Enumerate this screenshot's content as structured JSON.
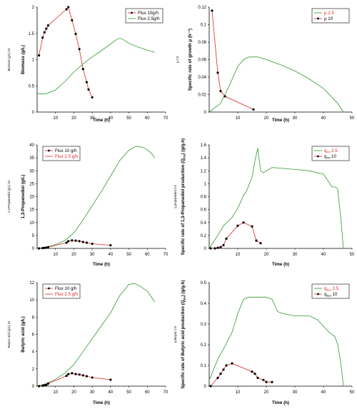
{
  "colors": {
    "red": "#e0241b",
    "green": "#2f9a2f",
    "black": "#000000"
  },
  "chart_data": [
    {
      "type": "line",
      "side_label": "Biomass (g/L) 10",
      "xlabel": "Time (h)",
      "ylabel": "Biomass (g/L)",
      "xlim": [
        0,
        70
      ],
      "ylim": [
        0,
        2
      ],
      "xticks": [
        "10",
        "20",
        "30",
        "40",
        "50",
        "60",
        "70"
      ],
      "yticks": [
        "0",
        "0.5",
        "1",
        "1.5",
        "2"
      ],
      "legend": {
        "position": "top-right",
        "entries": [
          {
            "label": "Flux 10g/h",
            "label_color": "#000000",
            "line_color": "#e0241b",
            "marker": true
          },
          {
            "label": "Flux 2.5g/h",
            "label_color": "#000000",
            "line_color": "#2f9a2f",
            "marker": false
          }
        ]
      },
      "series": [
        {
          "name": "Flux 10g/h",
          "color": "#e0241b",
          "marker": true,
          "x": [
            1,
            3,
            4,
            5,
            6,
            16,
            17,
            19,
            21,
            23,
            25,
            27,
            28,
            30
          ],
          "y": [
            1.08,
            1.42,
            1.52,
            1.59,
            1.65,
            1.96,
            2.0,
            1.75,
            1.49,
            1.2,
            0.82,
            0.57,
            0.43,
            0.28
          ]
        },
        {
          "name": "Flux 2.5g/h",
          "color": "#2f9a2f",
          "marker": false,
          "x": [
            0,
            5,
            10,
            15,
            20,
            25,
            30,
            35,
            40,
            44,
            46,
            50,
            55,
            60,
            64
          ],
          "y": [
            0.35,
            0.35,
            0.42,
            0.58,
            0.76,
            0.92,
            1.05,
            1.17,
            1.3,
            1.4,
            1.4,
            1.31,
            1.24,
            1.18,
            1.14
          ]
        }
      ]
    },
    {
      "type": "line",
      "side_label": "μ 2.5",
      "xlabel": "Time (h)",
      "ylabel": "Specific rate of growth μ (h⁻¹)",
      "xlim": [
        0,
        50
      ],
      "ylim": [
        0,
        0.12
      ],
      "xticks": [
        "10",
        "20",
        "30",
        "40",
        "50"
      ],
      "yticks": [
        "0",
        "0.02",
        "0.04",
        "0.06",
        "0.08",
        "0.1",
        "0.12"
      ],
      "legend": {
        "position": "top-right",
        "entries": [
          {
            "label": "μ 2.5",
            "label_color": "#e0241b",
            "line_color": "#2f9a2f",
            "marker": false
          },
          {
            "label": "μ 10",
            "label_color": "#000000",
            "line_color": "#e0241b",
            "marker": true
          }
        ]
      },
      "series": [
        {
          "name": "μ 10",
          "color": "#e0241b",
          "marker": true,
          "x": [
            1,
            3,
            4,
            5.5,
            15.5
          ],
          "y": [
            0.116,
            0.045,
            0.024,
            0.018,
            0.003
          ]
        },
        {
          "name": "μ 2.5",
          "color": "#2f9a2f",
          "marker": false,
          "x": [
            0,
            4,
            7,
            10,
            12,
            14,
            17,
            20,
            25,
            30,
            35,
            40,
            45,
            47
          ],
          "y": [
            0.0,
            0.01,
            0.03,
            0.052,
            0.06,
            0.063,
            0.063,
            0.06,
            0.054,
            0.047,
            0.038,
            0.027,
            0.01,
            0.0
          ]
        }
      ]
    },
    {
      "type": "line",
      "side_label": "1,3-Propanediol (g/L) 10",
      "xlabel": "Time (h)",
      "ylabel": "1,3-Propanediol (g/L)",
      "xlim": [
        0,
        70
      ],
      "ylim": [
        0,
        40
      ],
      "xticks": [
        "10",
        "20",
        "30",
        "40",
        "50",
        "60",
        "70"
      ],
      "yticks": [
        "0",
        "5",
        "10",
        "15",
        "20",
        "25",
        "30",
        "35",
        "40"
      ],
      "legend": {
        "position": "top-left",
        "entries": [
          {
            "label": "Flux 10 g/h",
            "label_color": "#000000",
            "line_color": "#e0241b",
            "marker": true
          },
          {
            "label": "Flux 2.5 g/h",
            "label_color": "#e0241b",
            "line_color": "#e0241b",
            "marker": false
          }
        ]
      },
      "series": [
        {
          "name": "Flux 10 g/h",
          "color": "#e0241b",
          "marker": true,
          "x": [
            1,
            3,
            4,
            5,
            6,
            16,
            17,
            19,
            21,
            23,
            25,
            27,
            30,
            40
          ],
          "y": [
            0,
            0.1,
            0.2,
            0.3,
            0.5,
            2.2,
            2.8,
            3.1,
            3.0,
            2.8,
            2.5,
            2.2,
            1.8,
            1.2
          ]
        },
        {
          "name": "Flux 2.5 g/h",
          "color": "#2f9a2f",
          "marker": false,
          "x": [
            0,
            5,
            10,
            15,
            20,
            25,
            30,
            35,
            40,
            45,
            50,
            54,
            58,
            62,
            64
          ],
          "y": [
            0,
            0.5,
            1.5,
            3.0,
            6.0,
            11.0,
            16.5,
            22.0,
            28.0,
            34.0,
            38.0,
            39.5,
            39.0,
            37.0,
            35.0
          ]
        }
      ]
    },
    {
      "type": "line",
      "side_label": "q propanediol 2.5",
      "xlabel": "Time (h)",
      "ylabel": "Specific rate of 1,3-Propanediol production (Q",
      "ylabel_sub": "PD",
      "ylabel_tail": ") (g/g.h)",
      "xlim": [
        0,
        50
      ],
      "ylim": [
        0,
        1.6
      ],
      "xticks": [
        "10",
        "20",
        "30",
        "40",
        "50"
      ],
      "yticks": [
        "0",
        "0.2",
        "0.4",
        "0.6",
        "0.8",
        "1",
        "1.2",
        "1.4",
        "1.6"
      ],
      "legend": {
        "position": "top-right",
        "entries": [
          {
            "label": "q",
            "sub": "PD",
            "tail": "2.5",
            "label_color": "#e0241b",
            "line_color": "#2f9a2f",
            "marker": false
          },
          {
            "label": "q",
            "sub": "PD",
            "tail": "10",
            "label_color": "#000000",
            "line_color": "#e0241b",
            "marker": true
          }
        ]
      },
      "series": [
        {
          "name": "q PD 10",
          "color": "#e0241b",
          "marker": true,
          "x": [
            0.5,
            2,
            3,
            4,
            5,
            6,
            10,
            12,
            15,
            16.5,
            18
          ],
          "y": [
            0.0,
            0.0,
            0.01,
            0.02,
            0.05,
            0.15,
            0.35,
            0.4,
            0.34,
            0.12,
            0.08
          ]
        },
        {
          "name": "q PD 2.5",
          "color": "#2f9a2f",
          "marker": false,
          "x": [
            0,
            3,
            5,
            8,
            10,
            12,
            13,
            15,
            16,
            17,
            18,
            19,
            20,
            22,
            25,
            30,
            35,
            40,
            43,
            44,
            45,
            46,
            47
          ],
          "y": [
            0,
            0.2,
            0.35,
            0.48,
            0.62,
            0.82,
            0.88,
            1.1,
            1.35,
            1.55,
            1.2,
            1.17,
            1.2,
            1.25,
            1.24,
            1.22,
            1.2,
            1.15,
            0.95,
            0.95,
            0.92,
            0.5,
            0.0
          ]
        }
      ]
    },
    {
      "type": "line",
      "side_label": "Butyric acid (g/L) 10",
      "xlabel": "Time (h)",
      "ylabel": "Butyric acid (g/L)",
      "xlim": [
        0,
        70
      ],
      "ylim": [
        0,
        12
      ],
      "xticks": [
        "10",
        "20",
        "30",
        "40",
        "50",
        "60",
        "70"
      ],
      "yticks": [
        "0",
        "2",
        "4",
        "6",
        "8",
        "10",
        "12"
      ],
      "legend": {
        "position": "top-left",
        "entries": [
          {
            "label": "Flux 10 g/h",
            "label_color": "#000000",
            "line_color": "#e0241b",
            "marker": true
          },
          {
            "label": "Flux 2.5 g/h",
            "label_color": "#e0241b",
            "line_color": "#e0241b",
            "marker": false
          }
        ]
      },
      "series": [
        {
          "name": "Flux 10 g/h",
          "color": "#e0241b",
          "marker": true,
          "x": [
            1,
            3,
            4,
            5,
            6,
            16,
            17,
            19,
            21,
            23,
            25,
            27,
            30,
            40
          ],
          "y": [
            0,
            0.05,
            0.1,
            0.15,
            0.3,
            1.2,
            1.4,
            1.5,
            1.4,
            1.35,
            1.25,
            1.15,
            1.0,
            0.75
          ]
        },
        {
          "name": "Flux 2.5 g/h",
          "color": "#2f9a2f",
          "marker": false,
          "x": [
            0,
            5,
            10,
            15,
            20,
            25,
            30,
            35,
            40,
            45,
            50,
            53,
            56,
            60,
            64
          ],
          "y": [
            0,
            0.3,
            0.8,
            1.5,
            2.5,
            4.0,
            5.5,
            7.0,
            8.5,
            10.5,
            11.8,
            11.9,
            11.6,
            11.0,
            9.8
          ]
        }
      ]
    },
    {
      "type": "line",
      "side_label": "q Butyric 2.5",
      "xlabel": "Time (h)",
      "ylabel": "Specific rate of Butyric acid production (Q",
      "ylabel_sub": "Ba",
      "ylabel_tail": ") (g/g.h)",
      "xlim": [
        0,
        50
      ],
      "ylim": [
        0,
        0.5
      ],
      "xticks": [
        "10",
        "20",
        "30",
        "40",
        "50"
      ],
      "yticks": [
        "0",
        "0.1",
        "0.2",
        "0.3",
        "0.4",
        "0.5"
      ],
      "legend": {
        "position": "top-right",
        "entries": [
          {
            "label": "q",
            "sub": "Bu1",
            "tail": "2.5",
            "label_color": "#e0241b",
            "line_color": "#2f9a2f",
            "marker": false
          },
          {
            "label": "q",
            "sub": "Bu1",
            "tail": "10",
            "label_color": "#000000",
            "line_color": "#e0241b",
            "marker": true
          }
        ]
      },
      "series": [
        {
          "name": "q Bu1 10",
          "color": "#e0241b",
          "marker": true,
          "x": [
            0.5,
            3,
            4,
            5,
            6,
            8,
            15,
            16,
            17,
            19,
            20,
            22
          ],
          "y": [
            0.0,
            0.04,
            0.06,
            0.08,
            0.1,
            0.11,
            0.07,
            0.06,
            0.04,
            0.03,
            0.02,
            0.02
          ]
        },
        {
          "name": "q Bu1 2.5",
          "color": "#2f9a2f",
          "marker": false,
          "x": [
            0,
            3,
            5,
            8,
            10,
            12,
            14,
            16,
            20,
            22,
            24,
            26,
            30,
            35,
            38,
            42,
            44,
            45,
            46,
            47
          ],
          "y": [
            0.03,
            0.13,
            0.18,
            0.26,
            0.35,
            0.42,
            0.43,
            0.43,
            0.43,
            0.42,
            0.36,
            0.35,
            0.34,
            0.34,
            0.32,
            0.26,
            0.24,
            0.2,
            0.12,
            0.0
          ]
        }
      ]
    }
  ]
}
